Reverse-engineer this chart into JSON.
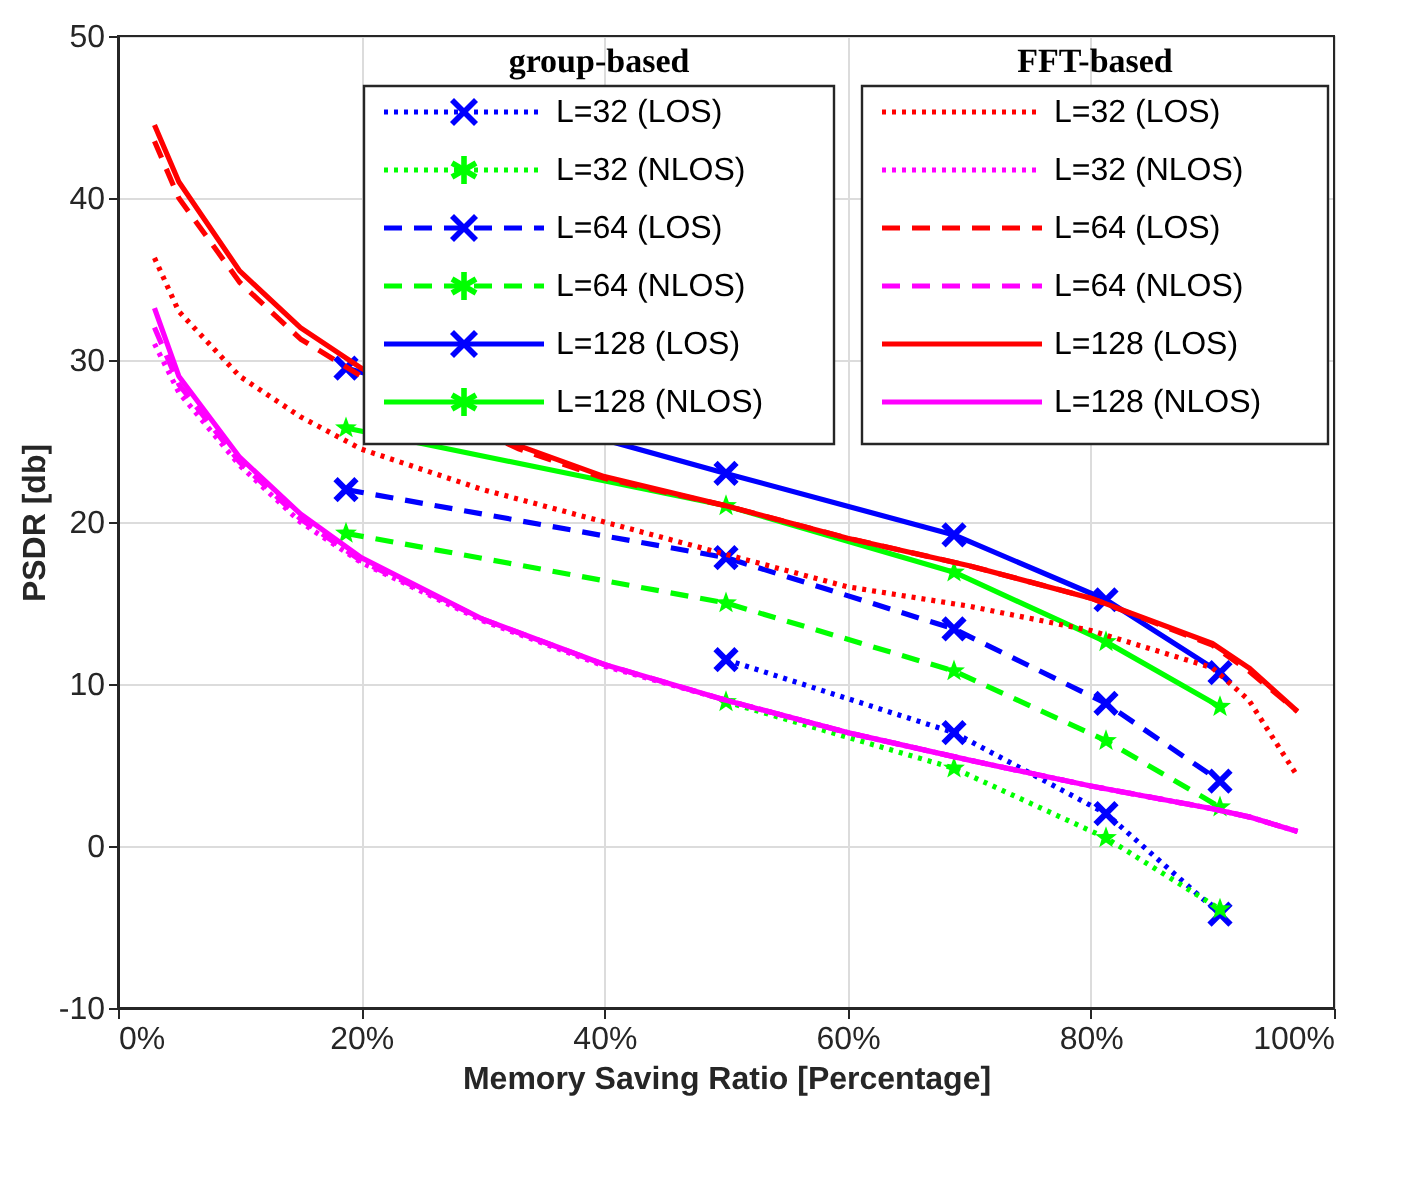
{
  "chart_data": {
    "type": "line",
    "xlabel": "Memory Saving Ratio [Percentage]",
    "ylabel": "PSDR [db]",
    "xlim": [
      0,
      100
    ],
    "xticks": [
      {
        "value": 0,
        "label": "0%"
      },
      {
        "value": 20,
        "label": "20%"
      },
      {
        "value": 40,
        "label": "40%"
      },
      {
        "value": 60,
        "label": "60%"
      },
      {
        "value": 80,
        "label": "80%"
      },
      {
        "value": 100,
        "label": "100%"
      }
    ],
    "ylim": [
      -10,
      50
    ],
    "yticks": [
      -10,
      0,
      10,
      20,
      30,
      40,
      50
    ],
    "grid": true,
    "legend": "top right",
    "annotations": [
      "group-based",
      "FFT-based"
    ],
    "series": [
      {
        "name": "L=32 (LOS)",
        "color": "#0000ff",
        "line_style": "dotted",
        "marker": "cross",
        "x": [
          50,
          68.75,
          81.25,
          90.625
        ],
        "values": [
          11.5,
          7,
          2,
          -4.2
        ]
      },
      {
        "name": "L=32 (NLOS)",
        "color": "#00ff00",
        "line_style": "dotted",
        "marker": "star",
        "x": [
          50,
          68.75,
          81.25,
          90.625
        ],
        "values": [
          8.9,
          4.8,
          0.5,
          -3.9
        ]
      },
      {
        "name": "L=64 (LOS)",
        "color": "#0000ff",
        "line_style": "dashed",
        "marker": "cross",
        "x": [
          18.75,
          50,
          68.75,
          81.25,
          90.625
        ],
        "values": [
          22,
          17.8,
          13.4,
          8.8,
          4
        ]
      },
      {
        "name": "L=64 (NLOS)",
        "color": "#00ff00",
        "line_style": "dashed",
        "marker": "star",
        "x": [
          18.75,
          50,
          68.75,
          81.25,
          90.625
        ],
        "values": [
          19.3,
          15,
          10.8,
          6.5,
          2.4
        ]
      },
      {
        "name": "L=128 (LOS)",
        "color": "#0000ff",
        "line_style": "solid",
        "marker": "cross",
        "x": [
          18.75,
          50,
          68.75,
          81.25,
          90.625
        ],
        "values": [
          29.5,
          23,
          19.2,
          15.2,
          10.7
        ]
      },
      {
        "name": "L=128 (NLOS)",
        "color": "#00ff00",
        "line_style": "solid",
        "marker": "star",
        "x": [
          18.75,
          50,
          68.75,
          81.25,
          90.625
        ],
        "values": [
          25.8,
          21,
          16.9,
          12.6,
          8.6
        ]
      },
      {
        "name": "L=32 (LOS)",
        "color": "#ff0000",
        "line_style": "dotted",
        "marker": "none",
        "x": [
          3,
          5,
          10,
          15,
          20,
          30,
          40,
          50,
          60,
          70,
          80,
          90,
          93,
          97
        ],
        "values": [
          36.3,
          33,
          29,
          26.5,
          24.5,
          22,
          20,
          18,
          16,
          14.8,
          13.3,
          11,
          9,
          4.3
        ]
      },
      {
        "name": "L=32 (NLOS)",
        "color": "#ff00ff",
        "line_style": "dotted",
        "marker": "none",
        "x": [
          3,
          5,
          10,
          15,
          20,
          30,
          40,
          50,
          60,
          70,
          80,
          90,
          93,
          97
        ],
        "values": [
          31,
          28,
          23.5,
          20,
          17.5,
          13.9,
          11.1,
          9,
          7,
          5.3,
          3.7,
          2.3,
          1.8,
          0.9
        ]
      },
      {
        "name": "L=64 (LOS)",
        "color": "#ff0000",
        "line_style": "dashed",
        "marker": "none",
        "x": [
          3,
          5,
          10,
          15,
          20,
          33,
          40,
          50,
          60,
          70,
          80,
          90,
          93,
          97
        ],
        "values": [
          43.5,
          40,
          34.8,
          31.3,
          29,
          24.5,
          22.7,
          21,
          19,
          17.3,
          15.3,
          12.4,
          10.8,
          8.3
        ]
      },
      {
        "name": "L=64 (NLOS)",
        "color": "#ff00ff",
        "line_style": "dashed",
        "marker": "none",
        "x": [
          3,
          5,
          10,
          15,
          20,
          30,
          40,
          50,
          60,
          70,
          80,
          90,
          93,
          97
        ],
        "values": [
          32,
          28.5,
          23.7,
          20.2,
          17.6,
          14,
          11.2,
          9,
          7,
          5.3,
          3.7,
          2.3,
          1.8,
          0.9
        ]
      },
      {
        "name": "L=128 (LOS)",
        "color": "#ff0000",
        "line_style": "solid",
        "marker": "none",
        "x": [
          3,
          5,
          10,
          15,
          20,
          33,
          40,
          50,
          60,
          70,
          80,
          90,
          93,
          97
        ],
        "values": [
          44.5,
          41,
          35.5,
          32,
          29.5,
          24.7,
          22.8,
          21,
          19,
          17.3,
          15.3,
          12.5,
          11,
          8.3
        ]
      },
      {
        "name": "L=128 (NLOS)",
        "color": "#ff00ff",
        "line_style": "solid",
        "marker": "none",
        "x": [
          3,
          5,
          10,
          15,
          20,
          30,
          40,
          50,
          60,
          70,
          80,
          90,
          93,
          97
        ],
        "values": [
          33.2,
          29,
          24,
          20.5,
          17.8,
          14,
          11.2,
          9,
          7,
          5.3,
          3.7,
          2.3,
          1.8,
          0.9
        ]
      }
    ]
  }
}
